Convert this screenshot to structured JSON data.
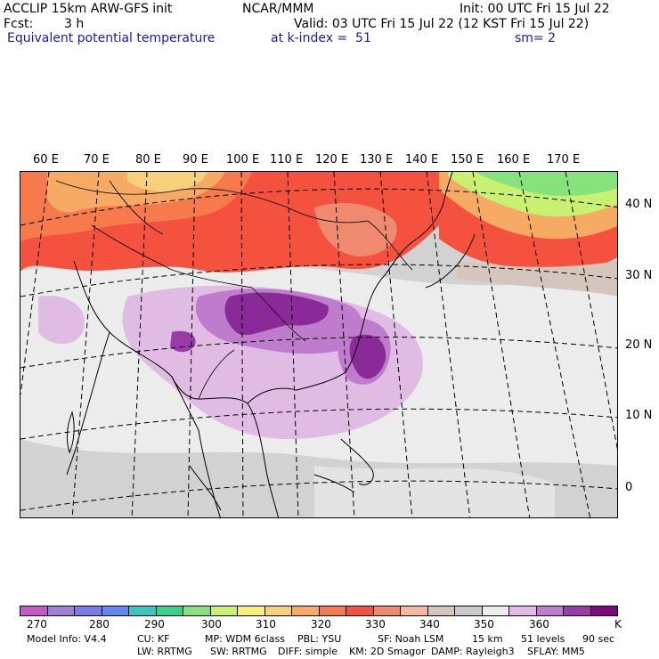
{
  "header": {
    "model": "ACCLIP 15km ARW-GFS init",
    "org": "NCAR/MMM",
    "init": "Init: 00 UTC Fri 15 Jul 22",
    "fcst_label": "Fcst:",
    "fcst_value": "3 h",
    "valid": "Valid: 03 UTC Fri 15 Jul 22 (12 KST Fri 15 Jul 22)",
    "field": "Equivalent potential temperature",
    "level": "at k-index =  51",
    "smooth": "sm= 2"
  },
  "longitude_labels": [
    "60 E",
    "70 E",
    "80 E",
    "90 E",
    "100 E",
    "110 E",
    "120 E",
    "130 E",
    "140 E",
    "150 E",
    "160 E",
    "170 E"
  ],
  "latitude_labels": [
    "40 N",
    "30 N",
    "20 N",
    "10 N",
    "0"
  ],
  "colorbar": {
    "colors": [
      "#c45ac8",
      "#a07fd6",
      "#7b7be8",
      "#5f8bf0",
      "#36c8c0",
      "#3ad08a",
      "#86e27c",
      "#c9f070",
      "#f6f07a",
      "#f7d07a",
      "#f7aa64",
      "#f77a4c",
      "#f4523e",
      "#ef8a6e",
      "#f2b8a0",
      "#d4c6bc",
      "#cacaca",
      "#ececec",
      "#e0bce4",
      "#c07ccc",
      "#9a3ca8",
      "#7a0a7e"
    ],
    "labels": [
      "270",
      "280",
      "290",
      "300",
      "310",
      "320",
      "330",
      "340",
      "350",
      "360"
    ],
    "unit": "K"
  },
  "footer": {
    "line1": [
      "Model Info: V4.4",
      "CU: KF",
      "MP: WDM 6class",
      "PBL: YSU",
      "SF: Noah LSM",
      "15 km",
      "51 levels",
      "90 sec"
    ],
    "line2": [
      "LW: RRTMG",
      "SW: RRTMG",
      "DIFF: simple",
      "KM: 2D Smagor",
      "DAMP: Rayleigh3",
      "SFLAY: MM5"
    ]
  }
}
